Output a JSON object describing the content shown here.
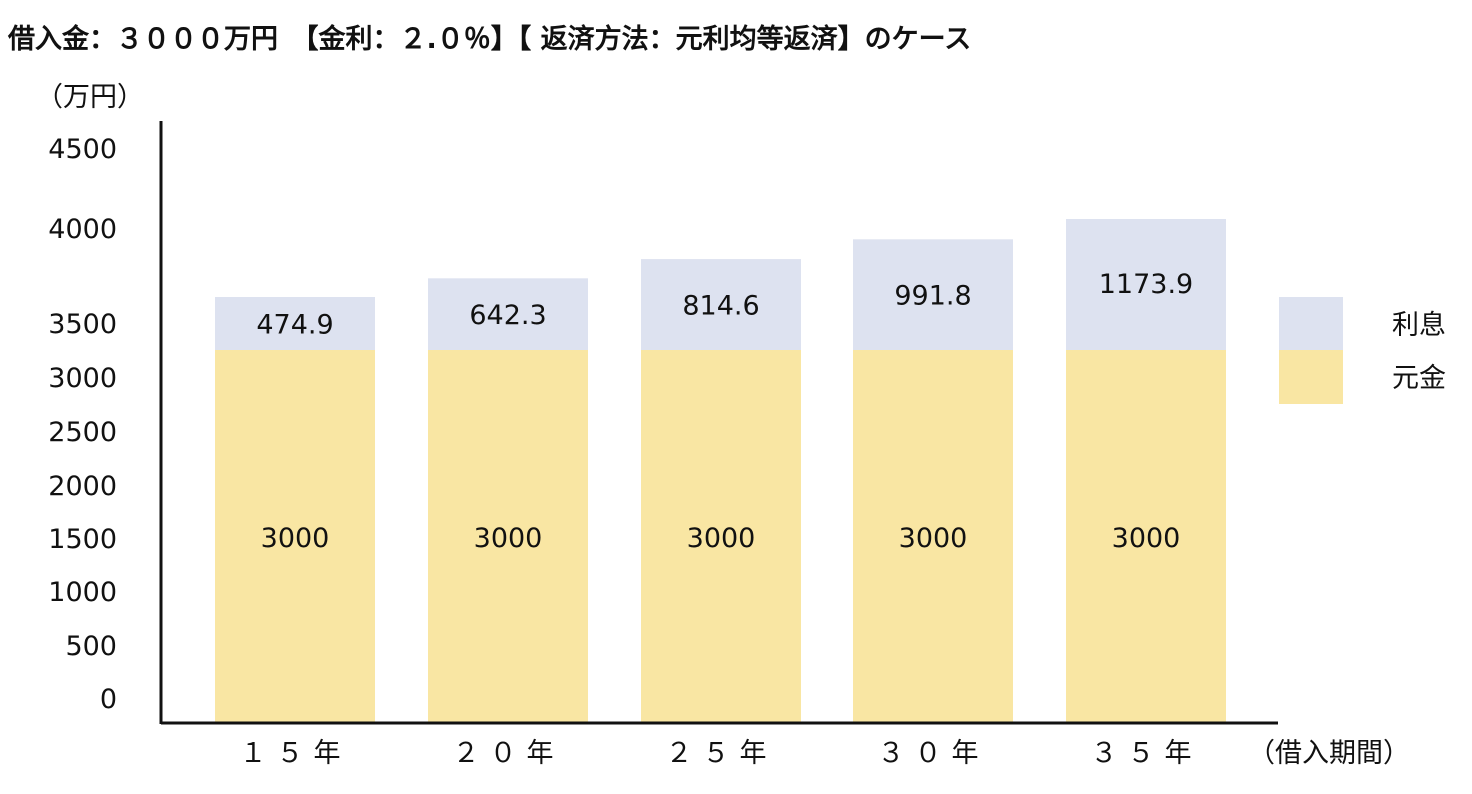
{
  "colors": {
    "principal": "#f9e6a3",
    "interest": "#dde2f0",
    "axis": "#111111",
    "text": "#111111"
  },
  "chart_data": {
    "type": "bar",
    "stacked": true,
    "title": "借入金：３０００万円　【金利：２.０％】【 返済方法：元利均等返済】のケース",
    "y_unit_label": "（万円）",
    "x_axis_label": "（借入期間）",
    "categories": [
      "１５年",
      "２０年",
      "２５年",
      "３０年",
      "３５年"
    ],
    "y_tick_labels": [
      "4500",
      "4000",
      "3500",
      "3000",
      "2500",
      "2000",
      "1500",
      "1000",
      "500",
      "0"
    ],
    "series": [
      {
        "name": "元金",
        "values": [
          3000,
          3000,
          3000,
          3000,
          3000
        ],
        "labels": [
          "3000",
          "3000",
          "3000",
          "3000",
          "3000"
        ],
        "color": "#f9e6a3"
      },
      {
        "name": "利息",
        "values": [
          474.9,
          642.3,
          814.6,
          991.8,
          1173.9
        ],
        "labels": [
          "474.9",
          "642.3",
          "814.6",
          "991.8",
          "1173.9"
        ],
        "color": "#dde2f0"
      }
    ],
    "legend_order": [
      "利息",
      "元金"
    ],
    "legend": "right",
    "grid": false
  }
}
